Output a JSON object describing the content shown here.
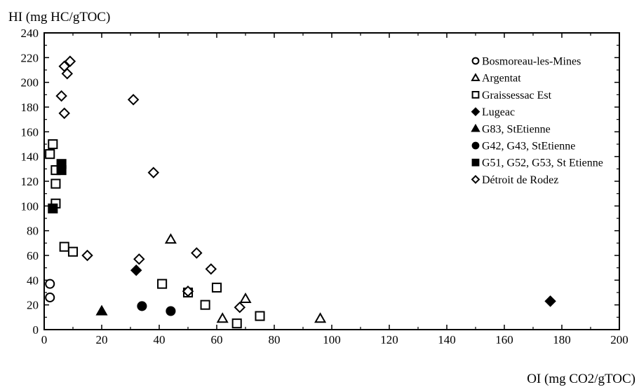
{
  "chart_data": {
    "type": "scatter",
    "xlabel": "OI (mg CO2/gTOC)",
    "ylabel": "HI (mg HC/gTOC)",
    "xlim": [
      0,
      200
    ],
    "ylim": [
      0,
      240
    ],
    "x_ticks": [
      0,
      20,
      40,
      60,
      80,
      100,
      120,
      140,
      160,
      180,
      200
    ],
    "y_ticks": [
      0,
      20,
      40,
      60,
      80,
      100,
      120,
      140,
      160,
      180,
      200,
      220,
      240
    ],
    "grid": false,
    "legend_position": "top-right",
    "series": [
      {
        "name": "Bosmoreau-les-Mines",
        "marker": "circle-open",
        "points": [
          [
            2,
            37
          ],
          [
            2,
            26
          ]
        ]
      },
      {
        "name": "Argentat",
        "marker": "triangle-open",
        "points": [
          [
            44,
            73
          ],
          [
            70,
            25
          ],
          [
            62,
            9
          ],
          [
            96,
            9
          ]
        ]
      },
      {
        "name": "Graissessac Est",
        "marker": "square-open",
        "points": [
          [
            3,
            150
          ],
          [
            2,
            142
          ],
          [
            4,
            129
          ],
          [
            4,
            118
          ],
          [
            4,
            102
          ],
          [
            7,
            67
          ],
          [
            10,
            63
          ],
          [
            41,
            37
          ],
          [
            50,
            30
          ],
          [
            60,
            34
          ],
          [
            56,
            20
          ],
          [
            67,
            5
          ],
          [
            75,
            11
          ]
        ]
      },
      {
        "name": "Lugeac",
        "marker": "diamond-filled",
        "points": [
          [
            32,
            48
          ],
          [
            176,
            23
          ]
        ]
      },
      {
        "name": "G83, StEtienne",
        "marker": "triangle-filled",
        "points": [
          [
            20,
            15
          ]
        ]
      },
      {
        "name": "G42, G43, StEtienne",
        "marker": "circle-filled",
        "points": [
          [
            34,
            19
          ],
          [
            44,
            15
          ]
        ]
      },
      {
        "name": "G51, G52, G53, St Etienne",
        "marker": "square-filled",
        "points": [
          [
            6,
            134
          ],
          [
            6,
            129
          ],
          [
            3,
            98
          ]
        ]
      },
      {
        "name": "Détroit de Rodez",
        "marker": "diamond-open",
        "points": [
          [
            9,
            217
          ],
          [
            7,
            213
          ],
          [
            8,
            207
          ],
          [
            6,
            189
          ],
          [
            7,
            175
          ],
          [
            31,
            186
          ],
          [
            38,
            127
          ],
          [
            15,
            60
          ],
          [
            33,
            57
          ],
          [
            53,
            62
          ],
          [
            58,
            49
          ],
          [
            50,
            31
          ],
          [
            68,
            18
          ]
        ]
      }
    ]
  }
}
